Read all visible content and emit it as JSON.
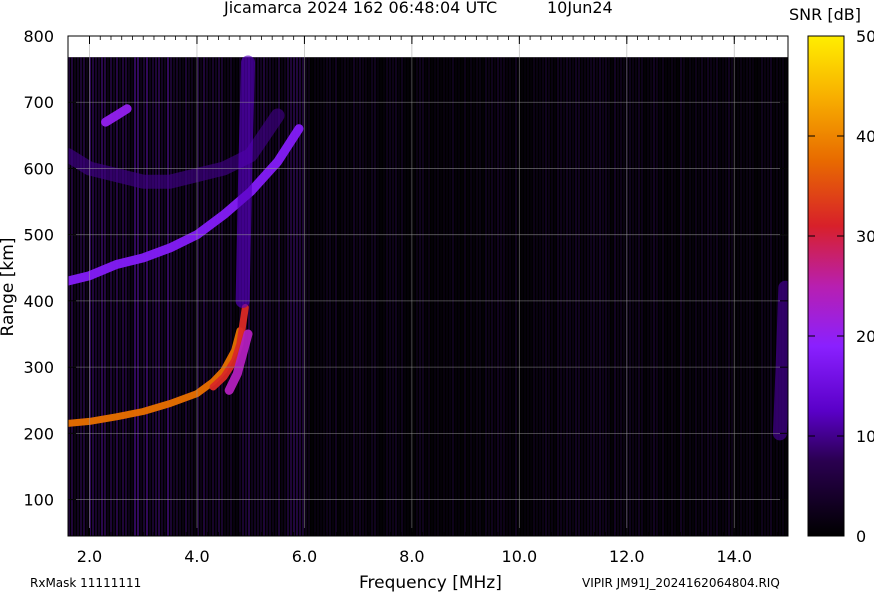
{
  "header": {
    "title": "Jicamarca 2024 162 06:48:04 UTC",
    "date": "10Jun24"
  },
  "colorbar": {
    "title": "SNR [dB]",
    "ticks": [
      "50",
      "40",
      "30",
      "20",
      "10",
      "0"
    ],
    "min": 0,
    "max": 50,
    "colors": [
      "#000000",
      "#2a0050",
      "#5a00c8",
      "#8a20ff",
      "#b81fb0",
      "#d8202a",
      "#e86a00",
      "#f8b000",
      "#ffee00"
    ]
  },
  "footer": {
    "rxmask": "RxMask 11111111",
    "file": "VIPIR  JM91J_2024162064804.RIQ"
  },
  "chart_data": {
    "type": "heatmap",
    "title": "Jicamarca 2024 162 06:48:04 UTC",
    "xlabel": "Frequency [MHz]",
    "ylabel": "Range [km]",
    "xlim": [
      1.6,
      15.0
    ],
    "ylim": [
      45,
      800
    ],
    "x_ticks": [
      2.0,
      4.0,
      6.0,
      8.0,
      10.0,
      12.0,
      14.0
    ],
    "x_tick_labels": [
      "2.0",
      "4.0",
      "6.0",
      "8.0",
      "10.0",
      "12.0",
      "14.0"
    ],
    "y_ticks": [
      100,
      200,
      300,
      400,
      500,
      600,
      700,
      800
    ],
    "y_tick_labels": [
      "100",
      "200",
      "300",
      "400",
      "500",
      "600",
      "700",
      "800"
    ],
    "grid": true,
    "value_label": "SNR [dB]",
    "value_range": [
      0,
      50
    ],
    "traces": [
      {
        "name": "",
        "x": [
          1.6,
          2.0,
          2.5,
          3.0,
          3.5,
          4.0,
          4.3,
          4.5,
          4.7,
          4.8
        ],
        "y": [
          215,
          218,
          225,
          233,
          245,
          260,
          278,
          295,
          325,
          355
        ],
        "snr": 38
      },
      {
        "name": "",
        "x": [
          4.3,
          4.5,
          4.7,
          4.8,
          4.9
        ],
        "y": [
          270,
          285,
          310,
          335,
          390
        ],
        "snr": 32
      },
      {
        "name": "",
        "x": [
          4.6,
          4.75,
          4.85,
          4.95
        ],
        "y": [
          265,
          290,
          320,
          350
        ],
        "snr": 24
      },
      {
        "name": "",
        "x": [
          1.6,
          2.0,
          2.5,
          3.0,
          3.5,
          4.0,
          4.5,
          5.0,
          5.5,
          5.9
        ],
        "y": [
          430,
          438,
          455,
          465,
          480,
          500,
          530,
          565,
          610,
          660
        ],
        "snr": 18
      },
      {
        "name": "",
        "x": [
          1.6,
          2.0,
          2.5,
          3.0,
          3.5,
          4.0,
          4.5,
          5.0,
          5.5
        ],
        "y": [
          620,
          600,
          590,
          580,
          580,
          590,
          600,
          620,
          680
        ],
        "snr": 9
      },
      {
        "name": "",
        "x": [
          2.3,
          2.5,
          2.7
        ],
        "y": [
          670,
          680,
          690
        ],
        "snr": 20
      },
      {
        "name": "",
        "x": [
          4.85,
          4.9,
          4.95
        ],
        "y": [
          400,
          600,
          760
        ],
        "snr": 12
      },
      {
        "name": "",
        "x": [
          14.85,
          14.9,
          14.95
        ],
        "y": [
          200,
          300,
          420
        ],
        "snr": 10
      }
    ]
  }
}
